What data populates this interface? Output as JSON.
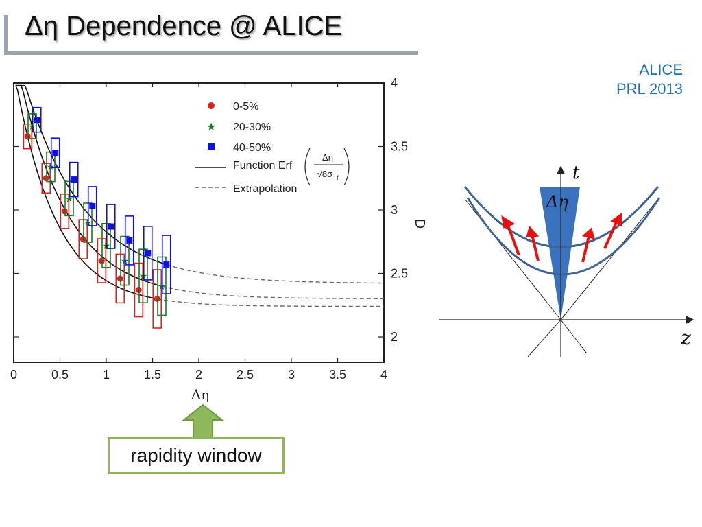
{
  "slide": {
    "title": "Δη Dependence @ ALICE",
    "reference_line1": "ALICE",
    "reference_line2": "PRL 2013",
    "callout": "rapidity window"
  },
  "chart_data": {
    "type": "scatter",
    "xlabel": "Δη",
    "ylabel": "D",
    "xlim": [
      0,
      4
    ],
    "ylim": [
      1.8,
      4
    ],
    "xticks": [
      "0",
      "0.5",
      "1",
      "1.5",
      "2",
      "2.5",
      "3",
      "3.5",
      "4"
    ],
    "yticks": [
      "2",
      "2.5",
      "3",
      "3.5",
      "4"
    ],
    "legend": {
      "placement": "top-right",
      "function_label": "Function Erf",
      "erf_numerator": "Δη",
      "erf_denominator": "√8σ",
      "erf_subscript": "f",
      "extrapolation_label": "Extrapolation"
    },
    "series": [
      {
        "name": "0-5%",
        "color": "#e02020",
        "marker": "circle",
        "x": [
          0.15,
          0.35,
          0.55,
          0.75,
          0.95,
          1.15,
          1.35,
          1.55
        ],
        "y": [
          3.58,
          3.25,
          2.99,
          2.77,
          2.6,
          2.46,
          2.37,
          2.3
        ],
        "fit_asymptote": 2.24
      },
      {
        "name": "20-30%",
        "color": "#1a7a1a",
        "marker": "star",
        "x": [
          0.2,
          0.4,
          0.6,
          0.8,
          1.0,
          1.2,
          1.4,
          1.6
        ],
        "y": [
          3.66,
          3.34,
          3.09,
          2.9,
          2.72,
          2.6,
          2.48,
          2.4
        ],
        "fit_asymptote": 2.3
      },
      {
        "name": "40-50%",
        "color": "#1010e0",
        "marker": "square",
        "x": [
          0.25,
          0.45,
          0.65,
          0.85,
          1.05,
          1.25,
          1.45,
          1.65
        ],
        "y": [
          3.71,
          3.45,
          3.24,
          3.03,
          2.87,
          2.76,
          2.66,
          2.57
        ],
        "fit_asymptote": 2.42
      }
    ]
  },
  "diagram": {
    "t_label": "t",
    "z_label": "z",
    "window_label": "Δη",
    "cone_color": "#3a72c0",
    "hyperbola_color": "#3d6494",
    "arrow_color": "#e81010"
  },
  "colors": {
    "title_rule": "#9aa3ad",
    "reference": "#1f6fb5",
    "callout_border": "#8cb85a",
    "callout_arrow": "#8cb85a"
  }
}
